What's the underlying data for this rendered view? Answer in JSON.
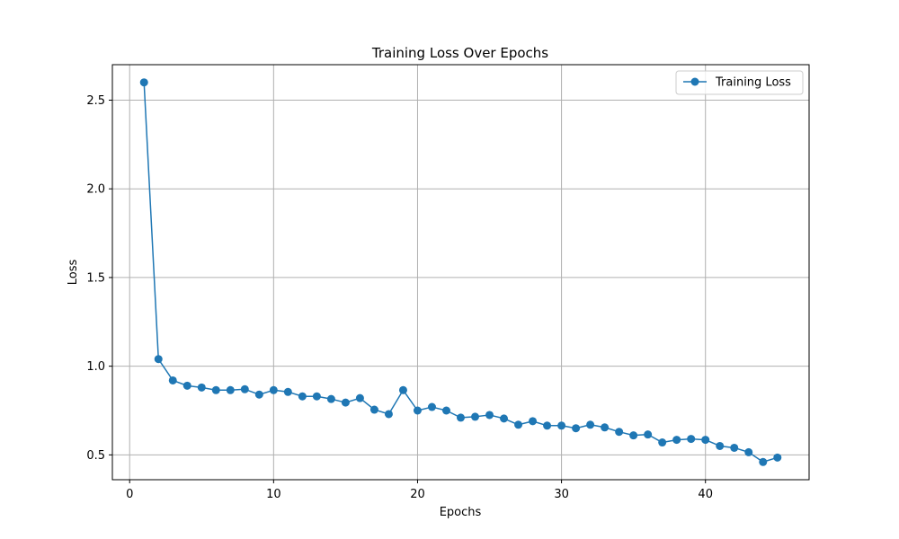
{
  "chart_data": {
    "type": "line",
    "title": "Training Loss Over Epochs",
    "xlabel": "Epochs",
    "ylabel": "Loss",
    "xlim": [
      -1.2,
      47.2
    ],
    "ylim": [
      0.36,
      2.7
    ],
    "xticks": [
      0,
      10,
      20,
      30,
      40
    ],
    "yticks": [
      0.5,
      1.0,
      1.5,
      2.0,
      2.5
    ],
    "xtick_labels": [
      "0",
      "10",
      "20",
      "30",
      "40"
    ],
    "ytick_labels": [
      "0.5",
      "1.0",
      "1.5",
      "2.0",
      "2.5"
    ],
    "grid": true,
    "legend_position": "top-right",
    "series": [
      {
        "name": "Training Loss",
        "color": "#1f77b4",
        "marker": "circle",
        "x": [
          1,
          2,
          3,
          4,
          5,
          6,
          7,
          8,
          9,
          10,
          11,
          12,
          13,
          14,
          15,
          16,
          17,
          18,
          19,
          20,
          21,
          22,
          23,
          24,
          25,
          26,
          27,
          28,
          29,
          30,
          31,
          32,
          33,
          34,
          35,
          36,
          37,
          38,
          39,
          40,
          41,
          42,
          43,
          44,
          45
        ],
        "values": [
          2.6,
          1.04,
          0.92,
          0.89,
          0.88,
          0.865,
          0.865,
          0.87,
          0.84,
          0.865,
          0.855,
          0.83,
          0.83,
          0.815,
          0.795,
          0.82,
          0.755,
          0.73,
          0.865,
          0.75,
          0.77,
          0.75,
          0.71,
          0.715,
          0.725,
          0.705,
          0.67,
          0.69,
          0.665,
          0.665,
          0.65,
          0.67,
          0.655,
          0.63,
          0.61,
          0.615,
          0.57,
          0.585,
          0.59,
          0.585,
          0.55,
          0.54,
          0.515,
          0.46,
          0.485
        ]
      }
    ]
  }
}
